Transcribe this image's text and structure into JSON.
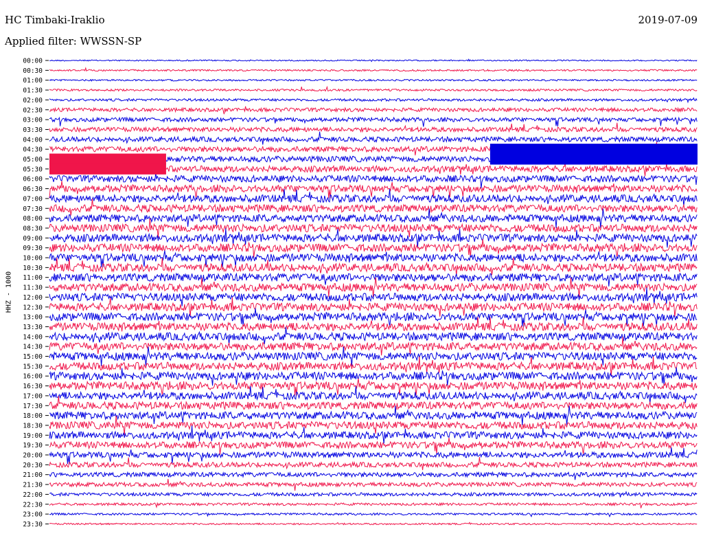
{
  "header": {
    "station": "HC Timbaki-Iraklio",
    "date": "2019-07-09",
    "filter": "Applied filter: WWSSN-SP"
  },
  "axis": {
    "channel_label": "HHZ - 1000"
  },
  "colors": {
    "trace_a": "#0000e0",
    "trace_b": "#f0154a",
    "background": "#ffffff"
  },
  "chart_data": {
    "type": "line",
    "title": "HC Timbaki-Iraklio",
    "subtitle": "Applied filter: WWSSN-SP",
    "ylabel": "HHZ - 1000",
    "date": "2019-07-09",
    "row_labels": [
      "00:00",
      "00:30",
      "01:00",
      "01:30",
      "02:00",
      "02:30",
      "03:00",
      "03:30",
      "04:00",
      "04:30",
      "05:00",
      "05:30",
      "06:00",
      "06:30",
      "07:00",
      "07:30",
      "08:00",
      "08:30",
      "09:00",
      "09:30",
      "10:00",
      "10:30",
      "11:00",
      "11:30",
      "12:00",
      "12:30",
      "13:00",
      "13:30",
      "14:00",
      "14:30",
      "15:00",
      "15:30",
      "16:00",
      "16:30",
      "17:00",
      "17:30",
      "18:00",
      "18:30",
      "19:00",
      "19:30",
      "20:00",
      "20:30",
      "21:00",
      "21:30",
      "22:00",
      "22:30",
      "23:00",
      "23:30"
    ],
    "row_noise_level": [
      0.15,
      0.2,
      0.2,
      0.25,
      0.3,
      0.45,
      0.5,
      0.55,
      0.6,
      0.65,
      0.7,
      0.75,
      0.8,
      0.85,
      0.9,
      0.9,
      0.9,
      0.95,
      0.95,
      0.95,
      0.95,
      0.95,
      0.95,
      0.95,
      0.95,
      0.95,
      0.95,
      0.95,
      0.95,
      0.95,
      0.95,
      0.95,
      0.95,
      0.95,
      0.9,
      0.9,
      0.9,
      0.9,
      0.85,
      0.8,
      0.7,
      0.6,
      0.55,
      0.5,
      0.4,
      0.3,
      0.25,
      0.2
    ],
    "saturated_segments": [
      {
        "row": 10,
        "from": 0.0,
        "to": 0.18,
        "color": "trace_b"
      },
      {
        "row": 11,
        "from": 0.0,
        "to": 0.18,
        "color": "trace_b"
      },
      {
        "row": 9,
        "from": 0.68,
        "to": 1.0,
        "color": "trace_a"
      },
      {
        "row": 10,
        "from": 0.68,
        "to": 1.0,
        "color": "trace_a"
      }
    ],
    "grid": false
  }
}
